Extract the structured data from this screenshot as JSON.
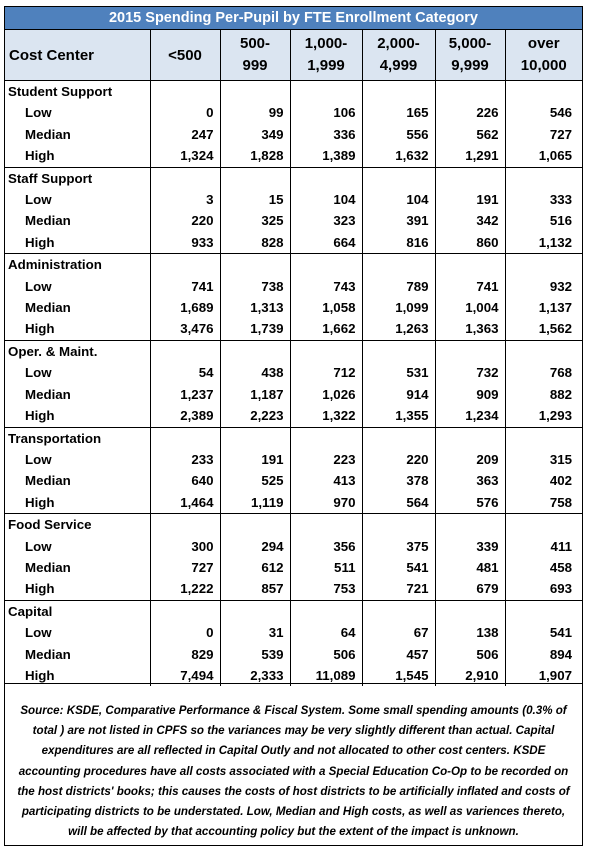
{
  "title": "2015 Spending Per-Pupil by FTE Enrollment Category",
  "headers": [
    {
      "l1": "Cost Center",
      "l2": ""
    },
    {
      "l1": "<500",
      "l2": ""
    },
    {
      "l1": "500-",
      "l2": "999"
    },
    {
      "l1": "1,000-",
      "l2": "1,999"
    },
    {
      "l1": "2,000-",
      "l2": "4,999"
    },
    {
      "l1": "5,000-",
      "l2": "9,999"
    },
    {
      "l1": "over",
      "l2": "10,000"
    }
  ],
  "groups": [
    {
      "name": "Student Support",
      "rows": [
        {
          "label": "Low",
          "values": [
            "0",
            "99",
            "106",
            "165",
            "226",
            "546"
          ]
        },
        {
          "label": "Median",
          "values": [
            "247",
            "349",
            "336",
            "556",
            "562",
            "727"
          ]
        },
        {
          "label": "High",
          "values": [
            "1,324",
            "1,828",
            "1,389",
            "1,632",
            "1,291",
            "1,065"
          ]
        }
      ]
    },
    {
      "name": "Staff Support",
      "rows": [
        {
          "label": "Low",
          "values": [
            "3",
            "15",
            "104",
            "104",
            "191",
            "333"
          ]
        },
        {
          "label": "Median",
          "values": [
            "220",
            "325",
            "323",
            "391",
            "342",
            "516"
          ]
        },
        {
          "label": "High",
          "values": [
            "933",
            "828",
            "664",
            "816",
            "860",
            "1,132"
          ]
        }
      ]
    },
    {
      "name": "Administration",
      "rows": [
        {
          "label": "Low",
          "values": [
            "741",
            "738",
            "743",
            "789",
            "741",
            "932"
          ]
        },
        {
          "label": "Median",
          "values": [
            "1,689",
            "1,313",
            "1,058",
            "1,099",
            "1,004",
            "1,137"
          ]
        },
        {
          "label": "High",
          "values": [
            "3,476",
            "1,739",
            "1,662",
            "1,263",
            "1,363",
            "1,562"
          ]
        }
      ]
    },
    {
      "name": "Oper. & Maint.",
      "rows": [
        {
          "label": "Low",
          "values": [
            "54",
            "438",
            "712",
            "531",
            "732",
            "768"
          ]
        },
        {
          "label": "Median",
          "values": [
            "1,237",
            "1,187",
            "1,026",
            "914",
            "909",
            "882"
          ]
        },
        {
          "label": "High",
          "values": [
            "2,389",
            "2,223",
            "1,322",
            "1,355",
            "1,234",
            "1,293"
          ]
        }
      ]
    },
    {
      "name": "Transportation",
      "rows": [
        {
          "label": "Low",
          "values": [
            "233",
            "191",
            "223",
            "220",
            "209",
            "315"
          ]
        },
        {
          "label": "Median",
          "values": [
            "640",
            "525",
            "413",
            "378",
            "363",
            "402"
          ]
        },
        {
          "label": "High",
          "values": [
            "1,464",
            "1,119",
            "970",
            "564",
            "576",
            "758"
          ]
        }
      ]
    },
    {
      "name": "Food Service",
      "rows": [
        {
          "label": "Low",
          "values": [
            "300",
            "294",
            "356",
            "375",
            "339",
            "411"
          ]
        },
        {
          "label": "Median",
          "values": [
            "727",
            "612",
            "511",
            "541",
            "481",
            "458"
          ]
        },
        {
          "label": "High",
          "values": [
            "1,222",
            "857",
            "753",
            "721",
            "679",
            "693"
          ]
        }
      ]
    },
    {
      "name": "Capital",
      "rows": [
        {
          "label": "Low",
          "values": [
            "0",
            "31",
            "64",
            "67",
            "138",
            "541"
          ]
        },
        {
          "label": "Median",
          "values": [
            "829",
            "539",
            "506",
            "457",
            "506",
            "894"
          ]
        },
        {
          "label": "High",
          "values": [
            "7,494",
            "2,333",
            "11,089",
            "1,545",
            "2,910",
            "1,907"
          ]
        }
      ]
    }
  ],
  "source": "Source: KSDE, Comparative Performance & Fiscal System.  Some small spending amounts (0.3% of total ) are not listed in CPFS so the variances may be very slightly different than actual.  Capital expenditures are all reflected in Capital Outly and not allocated to other cost centers.  KSDE accounting procedures have all costs associated with a Special Education Co-Op to be recorded on the host districts' books; this causes the costs of host districts to be artificially inflated and costs of participating districts to be understated.  Low, Median and High costs, as well as variences thereto, will be affected by that accounting policy but the extent of the impact is unknown."
}
